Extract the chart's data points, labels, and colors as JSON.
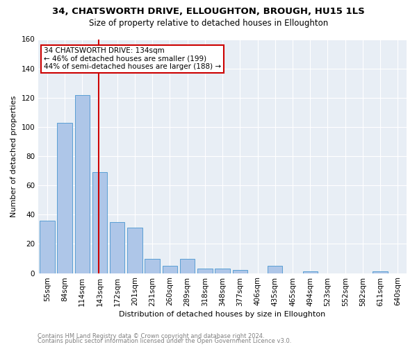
{
  "title": "34, CHATSWORTH DRIVE, ELLOUGHTON, BROUGH, HU15 1LS",
  "subtitle": "Size of property relative to detached houses in Elloughton",
  "xlabel": "Distribution of detached houses by size in Elloughton",
  "ylabel": "Number of detached properties",
  "footnote1": "Contains HM Land Registry data © Crown copyright and database right 2024.",
  "footnote2": "Contains public sector information licensed under the Open Government Licence v3.0.",
  "categories": [
    "55sqm",
    "84sqm",
    "114sqm",
    "143sqm",
    "172sqm",
    "201sqm",
    "231sqm",
    "260sqm",
    "289sqm",
    "318sqm",
    "348sqm",
    "377sqm",
    "406sqm",
    "435sqm",
    "465sqm",
    "494sqm",
    "523sqm",
    "552sqm",
    "582sqm",
    "611sqm",
    "640sqm"
  ],
  "values": [
    36,
    103,
    122,
    69,
    35,
    31,
    10,
    5,
    10,
    3,
    3,
    2,
    0,
    5,
    0,
    1,
    0,
    0,
    0,
    1,
    0
  ],
  "bar_color": "#aec6e8",
  "bar_edge_color": "#5a9fd4",
  "vline_color": "#cc0000",
  "annotation_text": "34 CHATSWORTH DRIVE: 134sqm\n← 46% of detached houses are smaller (199)\n44% of semi-detached houses are larger (188) →",
  "annotation_box_color": "#ffffff",
  "annotation_box_edge": "#cc0000",
  "ylim": [
    0,
    160
  ],
  "yticks": [
    0,
    20,
    40,
    60,
    80,
    100,
    120,
    140,
    160
  ],
  "plot_bg_color": "#e8eef5",
  "fig_bg_color": "#ffffff",
  "title_fontsize": 9.5,
  "subtitle_fontsize": 8.5,
  "annotation_fontsize": 7.5,
  "axis_fontsize": 7.5,
  "ylabel_fontsize": 8,
  "xlabel_fontsize": 8,
  "footnote_fontsize": 6,
  "vline_pos": 2.925
}
